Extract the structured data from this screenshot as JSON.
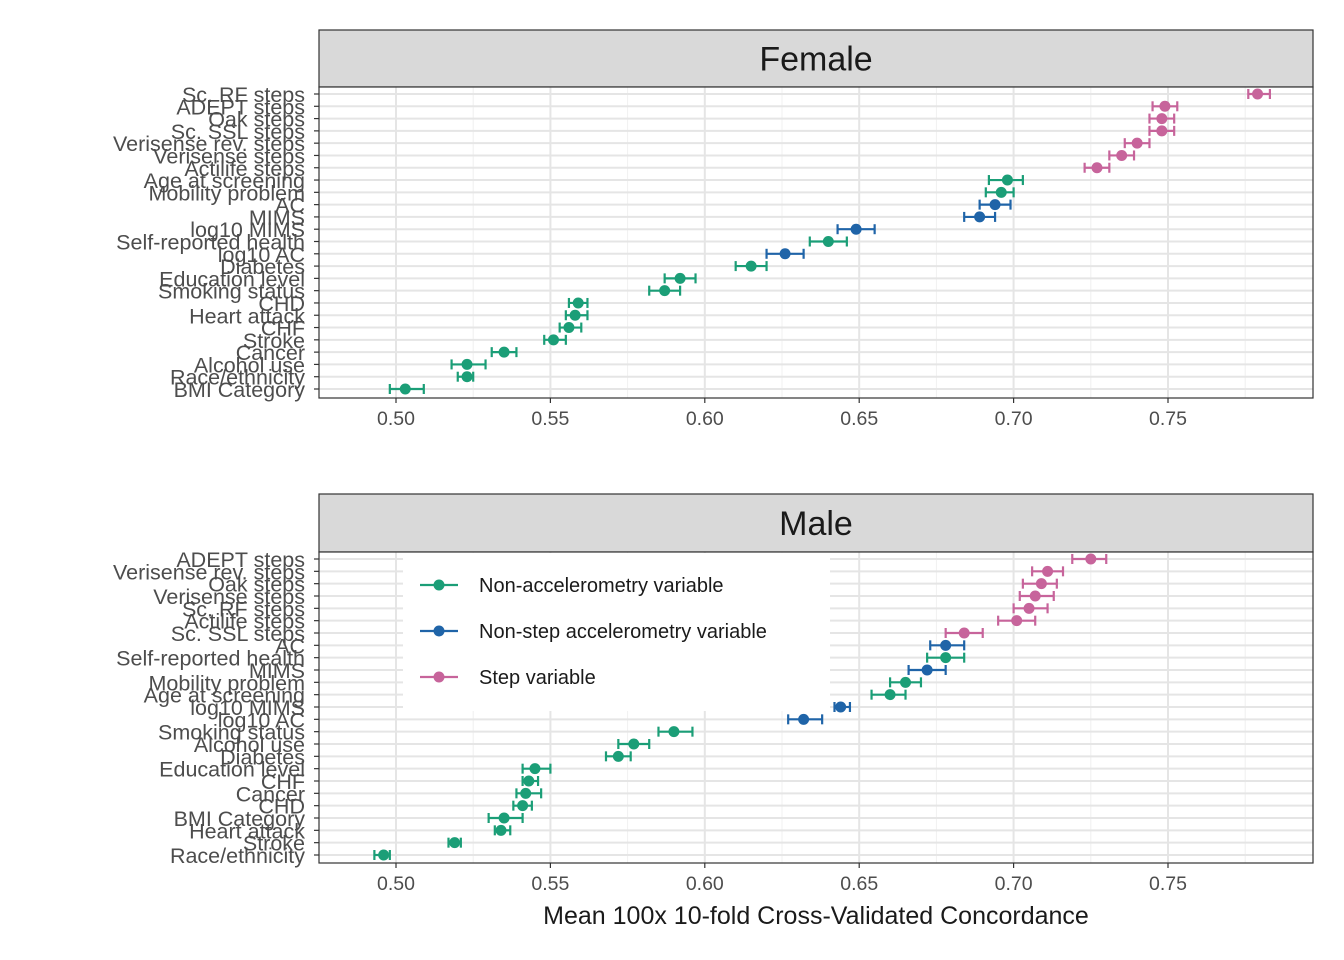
{
  "chart_data": {
    "type": "scatter",
    "xlabel": "Mean 100x 10-fold Cross-Validated Concordance",
    "xlim": [
      0.475,
      0.798
    ],
    "x_ticks": [
      "0.50",
      "0.55",
      "0.60",
      "0.65",
      "0.70",
      "0.75"
    ],
    "grid": true,
    "legend_position": "inside-top-left (Male panel)",
    "colors": {
      "Non-accelerometry variable": "#1b9e77",
      "Non-step accelerometry variable": "#1f64a8",
      "Step variable": "#c7649b"
    },
    "legend": [
      "Non-accelerometry variable",
      "Non-step accelerometry variable",
      "Step variable"
    ],
    "panels": [
      {
        "title": "Female",
        "points": [
          {
            "label": "Sc. RF steps",
            "group": "Step variable",
            "mean": 0.779,
            "lo": 0.776,
            "hi": 0.783
          },
          {
            "label": "ADEPT steps",
            "group": "Step variable",
            "mean": 0.749,
            "lo": 0.745,
            "hi": 0.753
          },
          {
            "label": "Oak steps",
            "group": "Step variable",
            "mean": 0.748,
            "lo": 0.744,
            "hi": 0.752
          },
          {
            "label": "Sc. SSL steps",
            "group": "Step variable",
            "mean": 0.748,
            "lo": 0.744,
            "hi": 0.752
          },
          {
            "label": "Verisense rev. steps",
            "group": "Step variable",
            "mean": 0.74,
            "lo": 0.736,
            "hi": 0.744
          },
          {
            "label": "Verisense steps",
            "group": "Step variable",
            "mean": 0.735,
            "lo": 0.731,
            "hi": 0.739
          },
          {
            "label": "Actilife steps",
            "group": "Step variable",
            "mean": 0.727,
            "lo": 0.723,
            "hi": 0.731
          },
          {
            "label": "Age at screening",
            "group": "Non-accelerometry variable",
            "mean": 0.698,
            "lo": 0.692,
            "hi": 0.703
          },
          {
            "label": "Mobility problem",
            "group": "Non-accelerometry variable",
            "mean": 0.696,
            "lo": 0.691,
            "hi": 0.7
          },
          {
            "label": "AC",
            "group": "Non-step accelerometry variable",
            "mean": 0.694,
            "lo": 0.689,
            "hi": 0.699
          },
          {
            "label": "MIMS",
            "group": "Non-step accelerometry variable",
            "mean": 0.689,
            "lo": 0.684,
            "hi": 0.694
          },
          {
            "label": "log10 MIMS",
            "group": "Non-step accelerometry variable",
            "mean": 0.649,
            "lo": 0.643,
            "hi": 0.655
          },
          {
            "label": "Self-reported health",
            "group": "Non-accelerometry variable",
            "mean": 0.64,
            "lo": 0.634,
            "hi": 0.646
          },
          {
            "label": "log10 AC",
            "group": "Non-step accelerometry variable",
            "mean": 0.626,
            "lo": 0.62,
            "hi": 0.632
          },
          {
            "label": "Diabetes",
            "group": "Non-accelerometry variable",
            "mean": 0.615,
            "lo": 0.61,
            "hi": 0.62
          },
          {
            "label": "Education level",
            "group": "Non-accelerometry variable",
            "mean": 0.592,
            "lo": 0.587,
            "hi": 0.597
          },
          {
            "label": "Smoking status",
            "group": "Non-accelerometry variable",
            "mean": 0.587,
            "lo": 0.582,
            "hi": 0.592
          },
          {
            "label": "CHD",
            "group": "Non-accelerometry variable",
            "mean": 0.559,
            "lo": 0.556,
            "hi": 0.562
          },
          {
            "label": "Heart attack",
            "group": "Non-accelerometry variable",
            "mean": 0.558,
            "lo": 0.555,
            "hi": 0.562
          },
          {
            "label": "CHF",
            "group": "Non-accelerometry variable",
            "mean": 0.556,
            "lo": 0.553,
            "hi": 0.56
          },
          {
            "label": "Stroke",
            "group": "Non-accelerometry variable",
            "mean": 0.551,
            "lo": 0.548,
            "hi": 0.555
          },
          {
            "label": "Cancer",
            "group": "Non-accelerometry variable",
            "mean": 0.535,
            "lo": 0.531,
            "hi": 0.539
          },
          {
            "label": "Alcohol use",
            "group": "Non-accelerometry variable",
            "mean": 0.523,
            "lo": 0.518,
            "hi": 0.529
          },
          {
            "label": "Race/ethnicity",
            "group": "Non-accelerometry variable",
            "mean": 0.523,
            "lo": 0.52,
            "hi": 0.525
          },
          {
            "label": "BMI Category",
            "group": "Non-accelerometry variable",
            "mean": 0.503,
            "lo": 0.498,
            "hi": 0.509
          }
        ]
      },
      {
        "title": "Male",
        "points": [
          {
            "label": "ADEPT steps",
            "group": "Step variable",
            "mean": 0.725,
            "lo": 0.719,
            "hi": 0.73
          },
          {
            "label": "Verisense rev. steps",
            "group": "Step variable",
            "mean": 0.711,
            "lo": 0.706,
            "hi": 0.716
          },
          {
            "label": "Oak steps",
            "group": "Step variable",
            "mean": 0.709,
            "lo": 0.703,
            "hi": 0.714
          },
          {
            "label": "Verisense steps",
            "group": "Step variable",
            "mean": 0.707,
            "lo": 0.702,
            "hi": 0.713
          },
          {
            "label": "Sc. RF steps",
            "group": "Step variable",
            "mean": 0.705,
            "lo": 0.7,
            "hi": 0.711
          },
          {
            "label": "Actilife steps",
            "group": "Step variable",
            "mean": 0.701,
            "lo": 0.695,
            "hi": 0.707
          },
          {
            "label": "Sc. SSL steps",
            "group": "Step variable",
            "mean": 0.684,
            "lo": 0.678,
            "hi": 0.69
          },
          {
            "label": "AC",
            "group": "Non-step accelerometry variable",
            "mean": 0.678,
            "lo": 0.673,
            "hi": 0.684
          },
          {
            "label": "Self-reported health",
            "group": "Non-accelerometry variable",
            "mean": 0.678,
            "lo": 0.672,
            "hi": 0.684
          },
          {
            "label": "MIMS",
            "group": "Non-step accelerometry variable",
            "mean": 0.672,
            "lo": 0.666,
            "hi": 0.678
          },
          {
            "label": "Mobility problem",
            "group": "Non-accelerometry variable",
            "mean": 0.665,
            "lo": 0.66,
            "hi": 0.67
          },
          {
            "label": "Age at screening",
            "group": "Non-accelerometry variable",
            "mean": 0.66,
            "lo": 0.654,
            "hi": 0.665
          },
          {
            "label": "log10 MIMS",
            "group": "Non-step accelerometry variable",
            "mean": 0.644,
            "lo": 0.642,
            "hi": 0.647
          },
          {
            "label": "log10 AC",
            "group": "Non-step accelerometry variable",
            "mean": 0.632,
            "lo": 0.627,
            "hi": 0.638
          },
          {
            "label": "Smoking status",
            "group": "Non-accelerometry variable",
            "mean": 0.59,
            "lo": 0.585,
            "hi": 0.596
          },
          {
            "label": "Alcohol use",
            "group": "Non-accelerometry variable",
            "mean": 0.577,
            "lo": 0.572,
            "hi": 0.582
          },
          {
            "label": "Diabetes",
            "group": "Non-accelerometry variable",
            "mean": 0.572,
            "lo": 0.568,
            "hi": 0.576
          },
          {
            "label": "Education level",
            "group": "Non-accelerometry variable",
            "mean": 0.545,
            "lo": 0.541,
            "hi": 0.55
          },
          {
            "label": "CHF",
            "group": "Non-accelerometry variable",
            "mean": 0.543,
            "lo": 0.541,
            "hi": 0.546
          },
          {
            "label": "Cancer",
            "group": "Non-accelerometry variable",
            "mean": 0.542,
            "lo": 0.539,
            "hi": 0.547
          },
          {
            "label": "CHD",
            "group": "Non-accelerometry variable",
            "mean": 0.541,
            "lo": 0.538,
            "hi": 0.544
          },
          {
            "label": "BMI Category",
            "group": "Non-accelerometry variable",
            "mean": 0.535,
            "lo": 0.53,
            "hi": 0.541
          },
          {
            "label": "Heart attack",
            "group": "Non-accelerometry variable",
            "mean": 0.534,
            "lo": 0.532,
            "hi": 0.537
          },
          {
            "label": "Stroke",
            "group": "Non-accelerometry variable",
            "mean": 0.519,
            "lo": 0.517,
            "hi": 0.521
          },
          {
            "label": "Race/ethnicity",
            "group": "Non-accelerometry variable",
            "mean": 0.496,
            "lo": 0.493,
            "hi": 0.498
          }
        ]
      }
    ]
  }
}
